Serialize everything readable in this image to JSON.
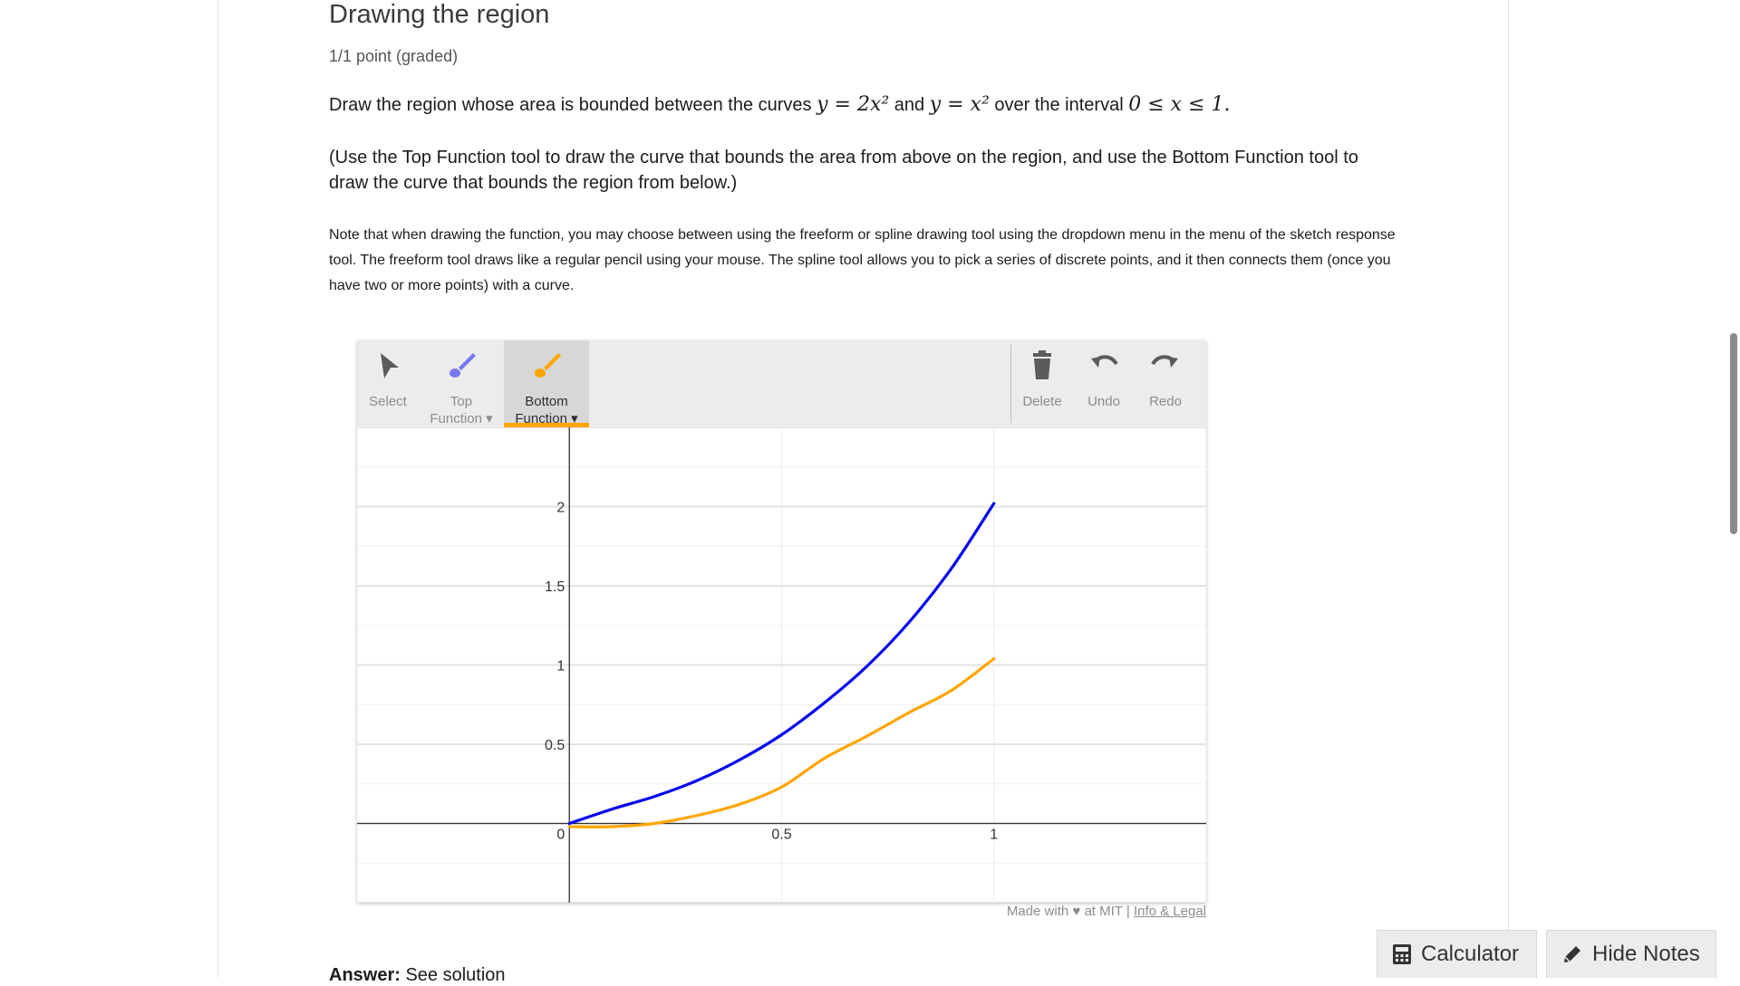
{
  "problem": {
    "title": "Drawing the region",
    "points": "1/1 point (graded)",
    "prompt_start": "Draw the region whose area is bounded between the curves",
    "math_top": "y = 2x²",
    "prompt_and": "and",
    "math_bottom": "y = x²",
    "prompt_interval": "over the interval",
    "math_interval": "0 ≤ x ≤ 1.",
    "instructions": "(Use the Top Function tool to draw the curve that bounds the area from above on the region, and use the Bottom Function tool to draw the curve that bounds the region from below.)",
    "note": "Note that when drawing the function, you may choose between using the freeform or spline drawing tool using the dropdown menu in the menu of the sketch response tool. The freeform tool draws like a regular pencil using your mouse. The spline tool allows you to pick a series of discrete points, and it then connects them (once you have two or more points) with a curve.",
    "answer_label": "Answer:",
    "answer_value": "See solution"
  },
  "toolbar": {
    "select": "Select",
    "top_line1": "Top",
    "top_line2": "Function ▾",
    "bottom_line1": "Bottom",
    "bottom_line2": "Function ▾",
    "delete": "Delete",
    "undo": "Undo",
    "redo": "Redo",
    "active_tool": "Bottom Function"
  },
  "credit": {
    "made_with": "Made with ♥ at MIT |",
    "link": "Info & Legal"
  },
  "footer_buttons": {
    "calculator": "Calculator",
    "hide_notes": "Hide Notes"
  },
  "colors": {
    "top_function": "#0000ee",
    "bottom_function": "#ffa500",
    "active_underline": "#ffa500"
  },
  "icons": [
    "cursor-icon",
    "brush-icon",
    "trash-icon",
    "undo-icon",
    "redo-icon",
    "calculator-icon",
    "pencil-icon"
  ],
  "chart_data": {
    "type": "line",
    "x_range": [
      -0.5,
      1.5
    ],
    "y_range": [
      -0.5,
      2.5
    ],
    "x_ticks": [
      "0.5",
      "1"
    ],
    "y_ticks": [
      "0.5",
      "1",
      "1.5",
      "2"
    ],
    "origin_label": "0",
    "grid": true,
    "series": [
      {
        "color": "#0000ee",
        "x": [
          0,
          0.1,
          0.2,
          0.3,
          0.4,
          0.5,
          0.6,
          0.7,
          0.8,
          0.9,
          1.0
        ],
        "y": [
          0.0,
          0.09,
          0.17,
          0.27,
          0.4,
          0.56,
          0.76,
          0.99,
          1.27,
          1.61,
          2.02
        ]
      },
      {
        "color": "#ffa500",
        "x": [
          0,
          0.1,
          0.2,
          0.3,
          0.4,
          0.5,
          0.6,
          0.7,
          0.8,
          0.9,
          1.0
        ],
        "y": [
          -0.02,
          -0.02,
          0.0,
          0.05,
          0.12,
          0.23,
          0.41,
          0.55,
          0.7,
          0.84,
          1.04
        ]
      }
    ]
  }
}
